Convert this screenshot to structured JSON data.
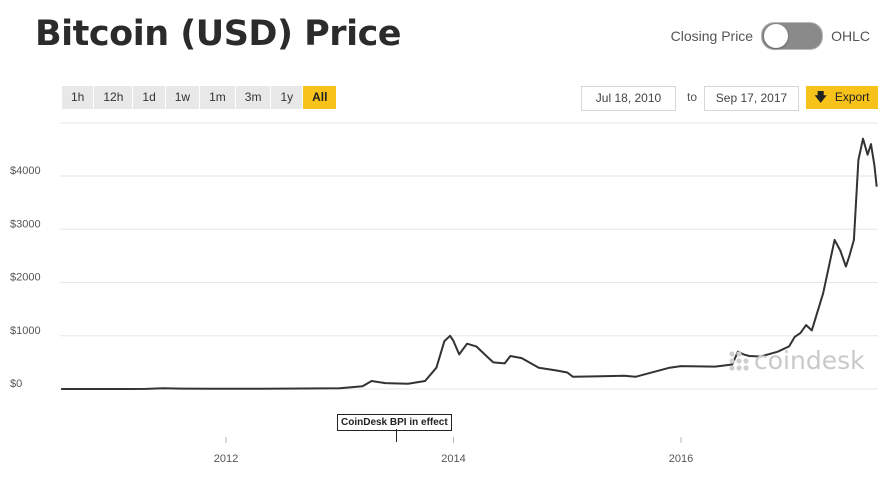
{
  "header": {
    "title": "Bitcoin (USD) Price"
  },
  "toggle": {
    "left_label": "Closing Price",
    "right_label": "OHLC"
  },
  "ranges": [
    "1h",
    "12h",
    "1d",
    "1w",
    "1m",
    "3m",
    "1y",
    "All"
  ],
  "active_range": "All",
  "date_range": {
    "from": "Jul 18, 2010",
    "to_label": "to",
    "to": "Sep 17, 2017"
  },
  "export": {
    "label": "Export"
  },
  "watermark": {
    "text": "coindesk"
  },
  "annotation": {
    "text": "CoinDesk BPI in effect",
    "date": 2013.5
  },
  "colors": {
    "accent": "#f7c21a",
    "line": "#333333",
    "grid": "#e6e6e6"
  },
  "chart_data": {
    "type": "line",
    "title": "Bitcoin (USD) Price",
    "xlabel": "",
    "ylabel": "",
    "xlim": [
      2010.55,
      2017.72
    ],
    "ylim": [
      -100,
      4900
    ],
    "x_ticks": [
      2012,
      2014,
      2016
    ],
    "x_tick_labels": [
      "2012",
      "2014",
      "2016"
    ],
    "y_ticks": [
      0,
      1000,
      2000,
      3000,
      4000
    ],
    "y_tick_labels": [
      "$0",
      "$1000",
      "$2000",
      "$3000",
      "$4000"
    ],
    "grid": "horizontal",
    "series": [
      {
        "name": "",
        "x": [
          2010.55,
          2011.0,
          2011.3,
          2011.45,
          2011.6,
          2011.9,
          2012.3,
          2012.7,
          2013.0,
          2013.2,
          2013.28,
          2013.4,
          2013.6,
          2013.75,
          2013.85,
          2013.92,
          2013.97,
          2014.0,
          2014.05,
          2014.12,
          2014.2,
          2014.3,
          2014.35,
          2014.45,
          2014.5,
          2014.6,
          2014.75,
          2014.9,
          2015.0,
          2015.05,
          2015.3,
          2015.5,
          2015.6,
          2015.9,
          2016.0,
          2016.3,
          2016.45,
          2016.5,
          2016.55,
          2016.6,
          2016.7,
          2016.85,
          2016.95,
          2017.0,
          2017.05,
          2017.1,
          2017.15,
          2017.25,
          2017.35,
          2017.4,
          2017.45,
          2017.48,
          2017.52,
          2017.56,
          2017.6,
          2017.64,
          2017.67,
          2017.7,
          2017.72
        ],
        "values": [
          0,
          0,
          2,
          15,
          8,
          3,
          5,
          10,
          15,
          50,
          150,
          110,
          100,
          150,
          400,
          900,
          1000,
          900,
          650,
          850,
          800,
          600,
          500,
          480,
          620,
          580,
          400,
          350,
          310,
          230,
          240,
          250,
          230,
          400,
          430,
          420,
          460,
          700,
          650,
          620,
          610,
          700,
          800,
          980,
          1050,
          1200,
          1100,
          1800,
          2800,
          2600,
          2300,
          2500,
          2800,
          4300,
          4700,
          4400,
          4600,
          4200,
          3800
        ]
      }
    ]
  }
}
